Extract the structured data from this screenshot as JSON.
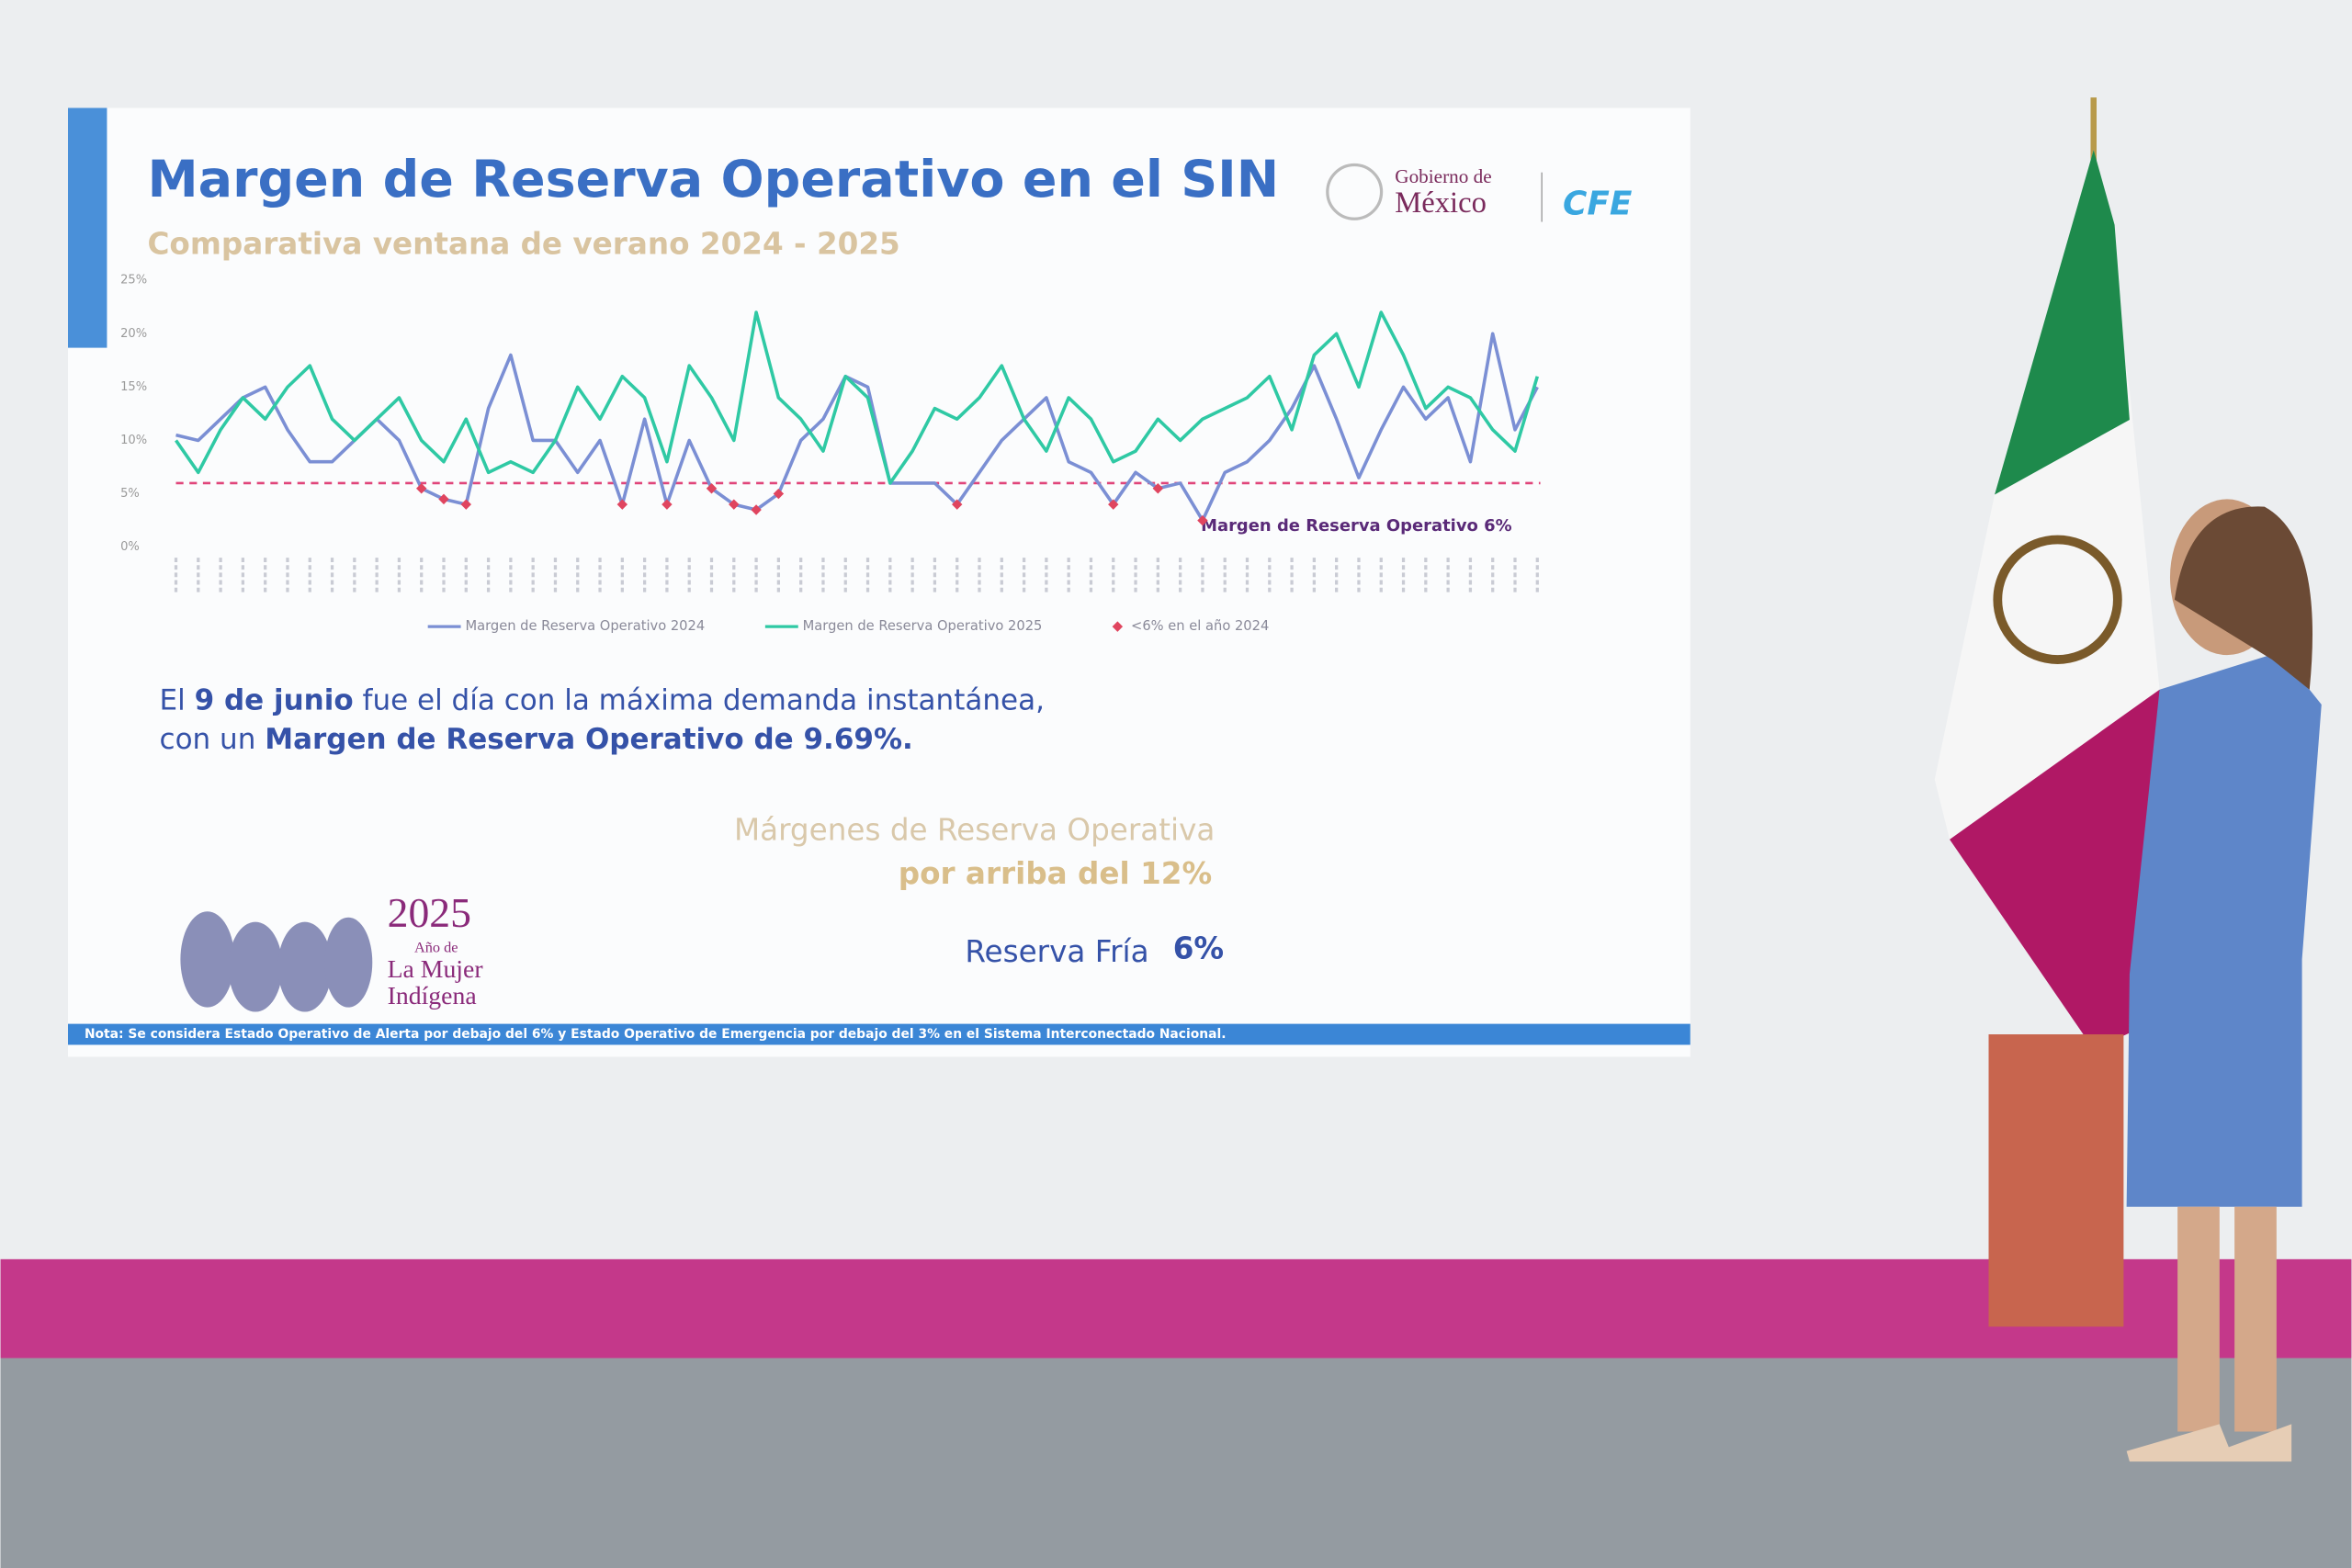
{
  "chart_data": {
    "type": "line",
    "title": "Margen de Reserva Operativo en el SIN",
    "subtitle": "Comparativa ventana de verano 2024 - 2025",
    "categories": [
      null,
      null,
      null,
      null,
      null,
      null,
      null,
      null,
      null,
      null,
      null,
      null,
      null,
      null,
      null,
      null,
      null,
      null,
      null,
      null,
      null,
      null,
      null,
      null,
      null,
      null,
      null,
      null,
      null,
      null,
      null,
      null,
      null,
      null,
      null,
      null,
      null,
      null,
      null,
      null,
      null,
      null,
      null,
      null,
      null,
      null,
      null,
      null,
      null,
      null,
      null,
      null,
      null,
      null,
      null,
      null,
      null,
      null,
      null,
      null,
      null,
      null
    ],
    "ylim": [
      0,
      25
    ],
    "yticks": [
      {
        "value": 0,
        "label": "0%"
      },
      {
        "value": 5,
        "label": "5%"
      },
      {
        "value": 10,
        "label": "10%"
      },
      {
        "value": 15,
        "label": "15%"
      },
      {
        "value": 20,
        "label": "20%"
      },
      {
        "value": 25,
        "label": "25%"
      }
    ],
    "grid": false,
    "legend": "bottom",
    "threshold": {
      "value": 6,
      "label": "Margen de Reserva Operativo 6%",
      "color": "#e0457a"
    },
    "series": [
      {
        "name": "Margen de Reserva Operativo 2024",
        "color": "#7b8fd4",
        "type": "line",
        "values": [
          10.5,
          10,
          12,
          14,
          15,
          11,
          8,
          8,
          10,
          12,
          10,
          5.5,
          4.5,
          4,
          13,
          18,
          10,
          10,
          7,
          10,
          4,
          12,
          4,
          10,
          5.5,
          4,
          3.5,
          5,
          10,
          12,
          16,
          15,
          6,
          6,
          6,
          4,
          7,
          10,
          12,
          14,
          8,
          7,
          4,
          7,
          5.5,
          6,
          2.5,
          7,
          8,
          10,
          13,
          17,
          12,
          6.5,
          11,
          15,
          12,
          14,
          8,
          20,
          11,
          15
        ]
      },
      {
        "name": "Margen de Reserva Operativo 2025",
        "color": "#2fc9a4",
        "type": "line",
        "values": [
          10,
          7,
          11,
          14,
          12,
          15,
          17,
          12,
          10,
          12,
          14,
          10,
          8,
          12,
          7,
          8,
          7,
          10,
          15,
          12,
          16,
          14,
          8,
          17,
          14,
          10,
          22,
          14,
          12,
          9,
          16,
          14,
          6,
          9,
          13,
          12,
          14,
          17,
          12,
          9,
          14,
          12,
          8,
          9,
          12,
          10,
          12,
          13,
          14,
          16,
          11,
          18,
          20,
          15,
          22,
          18,
          13,
          15,
          14,
          11,
          9,
          16
        ]
      },
      {
        "name": "<6% en el año 2024",
        "color": "#e0455f",
        "type": "scatter",
        "values": [
          null,
          null,
          null,
          null,
          null,
          null,
          null,
          null,
          null,
          null,
          null,
          5.5,
          4.5,
          4,
          null,
          null,
          null,
          null,
          null,
          null,
          4,
          null,
          4,
          null,
          5.5,
          4,
          3.5,
          5,
          null,
          null,
          null,
          null,
          null,
          null,
          null,
          4,
          null,
          null,
          null,
          null,
          null,
          null,
          4,
          null,
          5.5,
          null,
          2.5,
          null,
          null,
          null,
          null,
          null,
          null,
          null,
          null,
          null,
          null,
          null,
          null,
          null,
          null,
          null
        ]
      }
    ]
  },
  "slide": {
    "logo_line1": "Gobierno de",
    "logo_line2": "México",
    "logo_cfe": "CFE",
    "text1": [
      "El ",
      "9 de junio",
      " fue el día con la máxima demanda instantánea,"
    ],
    "text2": [
      "con un ",
      "Margen de Reserva Operativo de 9.69%."
    ],
    "margins_1": "Márgenes de Reserva Operativa",
    "margins_2": "por arriba del 12%",
    "cold_label": "Reserva Fría",
    "cold_value": "6%",
    "year": "2025",
    "year_1": "Año de",
    "year_2": "La Mujer",
    "year_3": "Indígena",
    "note": "Nota: Se considera Estado Operativo de Alerta por debajo del 6% y Estado Operativo de Emergencia por debajo del 3% en el Sistema Interconectado Nacional."
  }
}
